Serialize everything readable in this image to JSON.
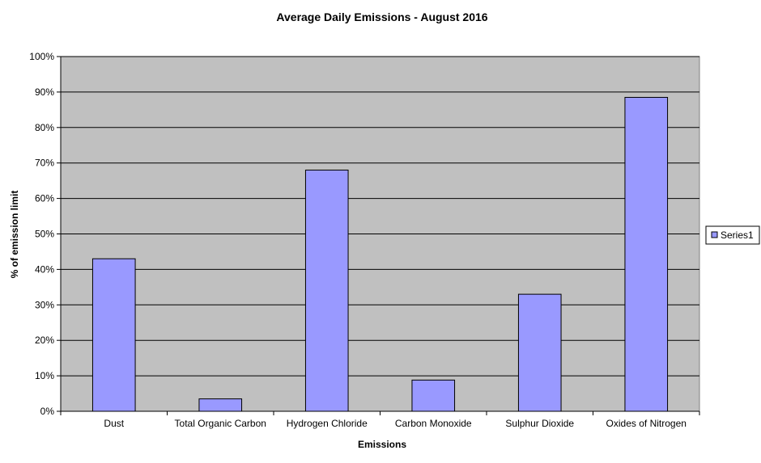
{
  "chart_data": {
    "type": "bar",
    "title": "Average Daily Emissions - August  2016",
    "xlabel": "Emissions",
    "ylabel": "% of emission limit",
    "categories": [
      "Dust",
      "Total Organic Carbon",
      "Hydrogen Chloride",
      "Carbon Monoxide",
      "Sulphur Dioxide",
      "Oxides of Nitrogen"
    ],
    "series": [
      {
        "name": "Series1",
        "values": [
          0.43,
          0.035,
          0.68,
          0.088,
          0.33,
          0.885
        ]
      }
    ],
    "ylim": [
      0,
      1
    ],
    "yticks": [
      "0%",
      "10%",
      "20%",
      "30%",
      "40%",
      "50%",
      "60%",
      "70%",
      "80%",
      "90%",
      "100%"
    ],
    "grid": true,
    "legend_position": "right",
    "colors": {
      "bar": "#9999ff",
      "plot_background": "#c0c0c0",
      "gridline": "#000000"
    }
  }
}
